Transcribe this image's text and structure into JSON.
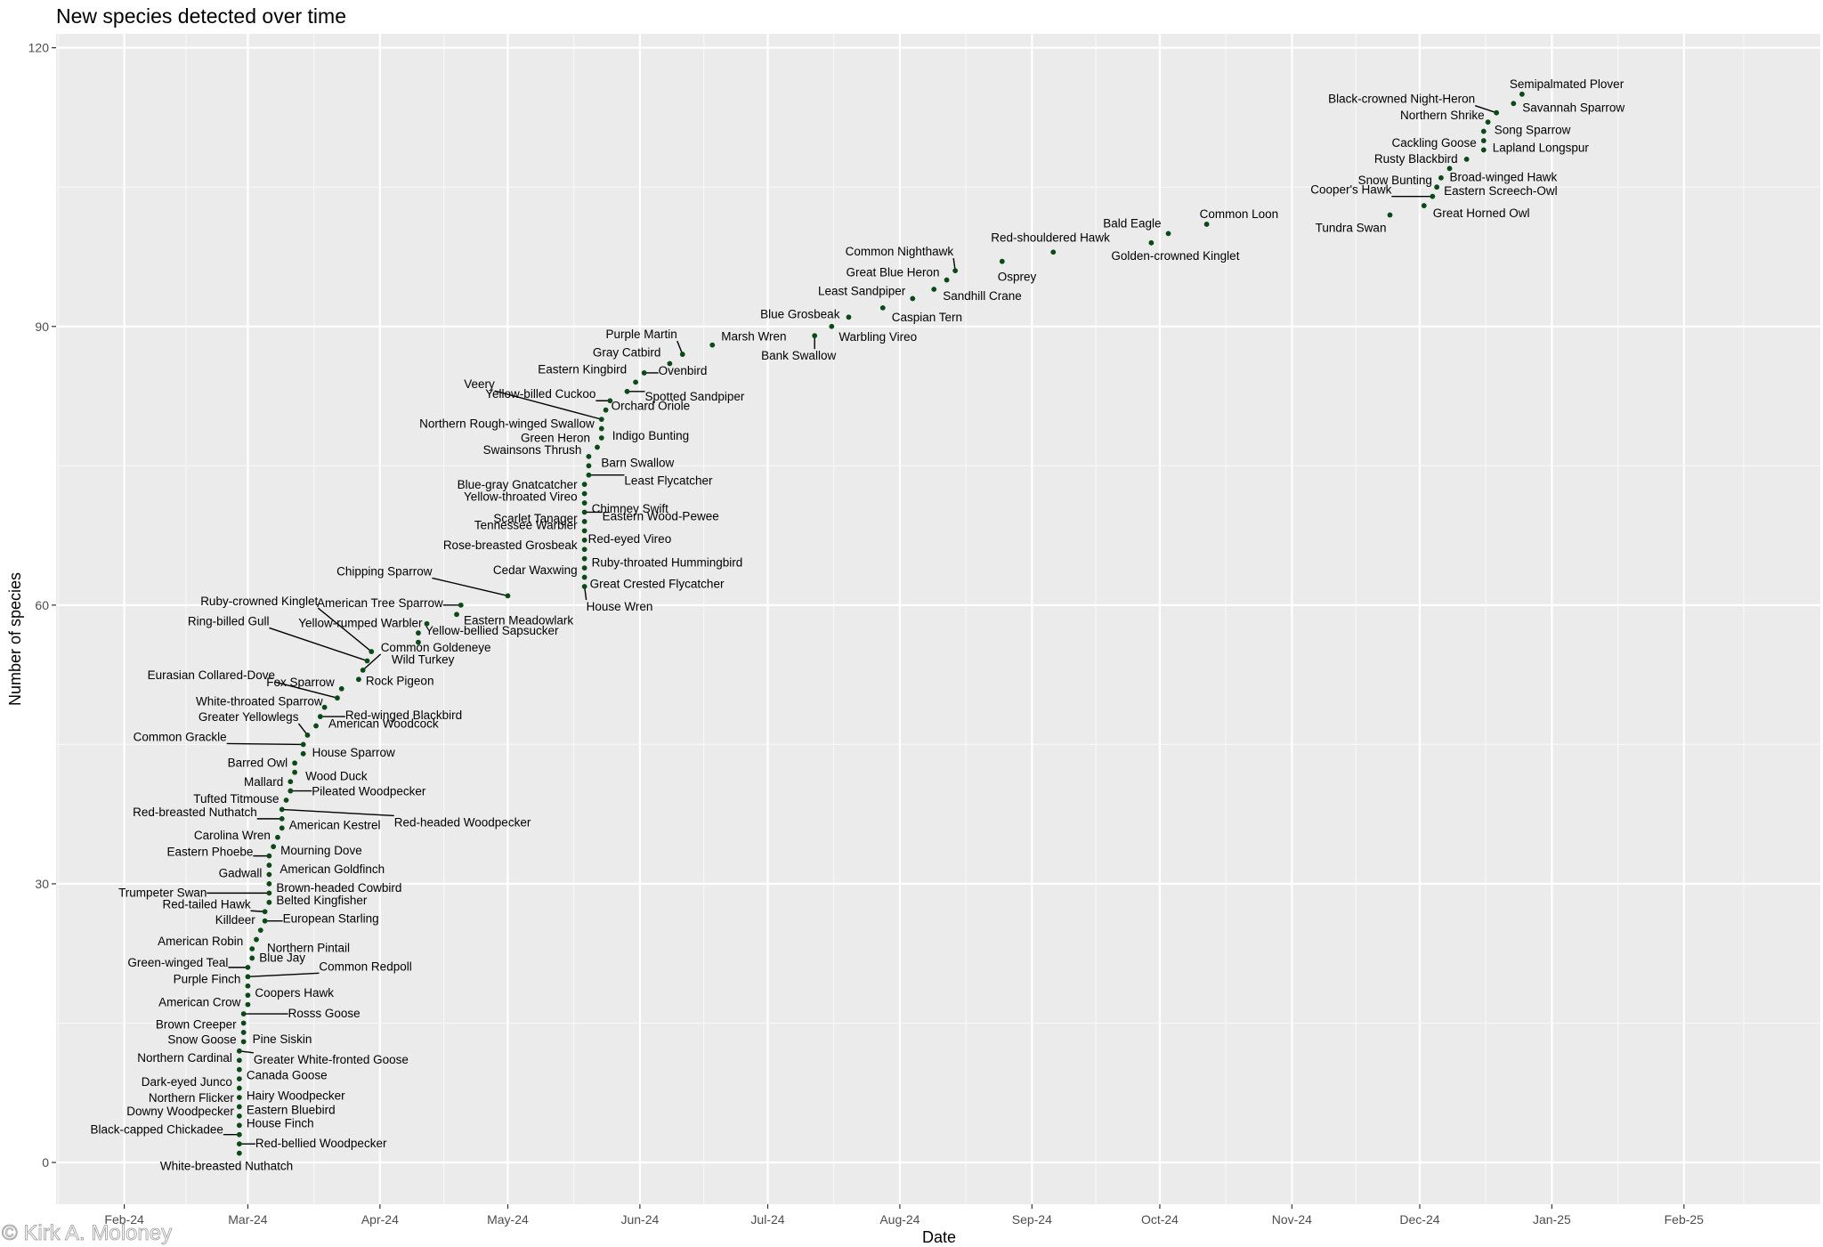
{
  "chart_data": {
    "type": "scatter",
    "title": "New species detected over time",
    "xlabel": "Date",
    "ylabel": "Number of species",
    "xlim": [
      "2024-01-16",
      "2025-03-05"
    ],
    "ylim": [
      -4.5,
      121.5
    ],
    "y_ticks": [
      0,
      30,
      60,
      90,
      120
    ],
    "x_ticks": [
      {
        "date": "2024-02-01",
        "label": "Feb-24"
      },
      {
        "date": "2024-03-01",
        "label": "Mar-24"
      },
      {
        "date": "2024-04-01",
        "label": "Apr-24"
      },
      {
        "date": "2024-05-01",
        "label": "May-24"
      },
      {
        "date": "2024-06-01",
        "label": "Jun-24"
      },
      {
        "date": "2024-07-01",
        "label": "Jul-24"
      },
      {
        "date": "2024-08-01",
        "label": "Aug-24"
      },
      {
        "date": "2024-09-01",
        "label": "Sep-24"
      },
      {
        "date": "2024-10-01",
        "label": "Oct-24"
      },
      {
        "date": "2024-11-01",
        "label": "Nov-24"
      },
      {
        "date": "2024-12-01",
        "label": "Dec-24"
      },
      {
        "date": "2025-01-01",
        "label": "Jan-25"
      },
      {
        "date": "2025-02-01",
        "label": "Feb-25"
      }
    ],
    "grid": true,
    "point_color": "#0b4a16",
    "panel_color": "#ebebeb",
    "points": [
      {
        "species": "White-breasted Nuthatch",
        "date": "2024-02-28",
        "count": 1
      },
      {
        "species": "Red-bellied Woodpecker",
        "date": "2024-02-28",
        "count": 2
      },
      {
        "species": "Black-capped Chickadee",
        "date": "2024-02-28",
        "count": 3
      },
      {
        "species": "House Finch",
        "date": "2024-02-28",
        "count": 4
      },
      {
        "species": "Downy Woodpecker",
        "date": "2024-02-28",
        "count": 5
      },
      {
        "species": "Eastern Bluebird",
        "date": "2024-02-28",
        "count": 6
      },
      {
        "species": "Northern Flicker",
        "date": "2024-02-28",
        "count": 7
      },
      {
        "species": "Hairy Woodpecker",
        "date": "2024-02-28",
        "count": 8
      },
      {
        "species": "Dark-eyed Junco",
        "date": "2024-02-28",
        "count": 9
      },
      {
        "species": "Canada Goose",
        "date": "2024-02-28",
        "count": 10
      },
      {
        "species": "Northern Cardinal",
        "date": "2024-02-28",
        "count": 11
      },
      {
        "species": "Greater White-fronted Goose",
        "date": "2024-02-28",
        "count": 12
      },
      {
        "species": "Snow Goose",
        "date": "2024-02-29",
        "count": 13
      },
      {
        "species": "Pine Siskin",
        "date": "2024-02-29",
        "count": 14
      },
      {
        "species": "Brown Creeper",
        "date": "2024-02-29",
        "count": 15
      },
      {
        "species": "Rosss Goose",
        "date": "2024-02-29",
        "count": 16
      },
      {
        "species": "American Crow",
        "date": "2024-03-01",
        "count": 17
      },
      {
        "species": "Coopers Hawk",
        "date": "2024-03-01",
        "count": 18
      },
      {
        "species": "Purple Finch",
        "date": "2024-03-01",
        "count": 19
      },
      {
        "species": "Common Redpoll",
        "date": "2024-03-01",
        "count": 20
      },
      {
        "species": "Green-winged Teal",
        "date": "2024-03-01",
        "count": 21
      },
      {
        "species": "Blue Jay",
        "date": "2024-03-02",
        "count": 22
      },
      {
        "species": "American Robin",
        "date": "2024-03-02",
        "count": 23
      },
      {
        "species": "Northern Pintail",
        "date": "2024-03-03",
        "count": 24
      },
      {
        "species": "Killdeer",
        "date": "2024-03-04",
        "count": 25
      },
      {
        "species": "European Starling",
        "date": "2024-03-05",
        "count": 26
      },
      {
        "species": "Red-tailed Hawk",
        "date": "2024-03-05",
        "count": 27
      },
      {
        "species": "Belted Kingfisher",
        "date": "2024-03-06",
        "count": 28
      },
      {
        "species": "Trumpeter Swan",
        "date": "2024-03-06",
        "count": 29
      },
      {
        "species": "Brown-headed Cowbird",
        "date": "2024-03-06",
        "count": 30
      },
      {
        "species": "Gadwall",
        "date": "2024-03-06",
        "count": 31
      },
      {
        "species": "American Goldfinch",
        "date": "2024-03-06",
        "count": 32
      },
      {
        "species": "Eastern Phoebe",
        "date": "2024-03-06",
        "count": 33
      },
      {
        "species": "Mourning Dove",
        "date": "2024-03-07",
        "count": 34
      },
      {
        "species": "Carolina Wren",
        "date": "2024-03-08",
        "count": 35
      },
      {
        "species": "American Kestrel",
        "date": "2024-03-09",
        "count": 36
      },
      {
        "species": "Red-breasted Nuthatch",
        "date": "2024-03-09",
        "count": 37
      },
      {
        "species": "Red-headed Woodpecker",
        "date": "2024-03-09",
        "count": 38
      },
      {
        "species": "Tufted Titmouse",
        "date": "2024-03-10",
        "count": 39
      },
      {
        "species": "Pileated Woodpecker",
        "date": "2024-03-11",
        "count": 40
      },
      {
        "species": "Mallard",
        "date": "2024-03-11",
        "count": 41
      },
      {
        "species": "Wood Duck",
        "date": "2024-03-12",
        "count": 42
      },
      {
        "species": "Barred Owl",
        "date": "2024-03-12",
        "count": 43
      },
      {
        "species": "House Sparrow",
        "date": "2024-03-14",
        "count": 44
      },
      {
        "species": "Common Grackle",
        "date": "2024-03-14",
        "count": 45
      },
      {
        "species": "Greater Yellowlegs",
        "date": "2024-03-15",
        "count": 46
      },
      {
        "species": "American Woodcock",
        "date": "2024-03-17",
        "count": 47
      },
      {
        "species": "Red-winged Blackbird",
        "date": "2024-03-18",
        "count": 48
      },
      {
        "species": "White-throated Sparrow",
        "date": "2024-03-19",
        "count": 49
      },
      {
        "species": "Eurasian Collared-Dove",
        "date": "2024-03-22",
        "count": 50
      },
      {
        "species": "Fox Sparrow",
        "date": "2024-03-23",
        "count": 51
      },
      {
        "species": "Rock Pigeon",
        "date": "2024-03-27",
        "count": 52
      },
      {
        "species": "Common Goldeneye",
        "date": "2024-03-28",
        "count": 53
      },
      {
        "species": "Ring-billed Gull",
        "date": "2024-03-29",
        "count": 54
      },
      {
        "species": "Ruby-crowned Kinglet",
        "date": "2024-03-30",
        "count": 55
      },
      {
        "species": "Wild Turkey",
        "date": "2024-04-10",
        "count": 56
      },
      {
        "species": "Yellow-bellied Sapsucker",
        "date": "2024-04-10",
        "count": 57
      },
      {
        "species": "Yellow-rumped Warbler",
        "date": "2024-04-12",
        "count": 58
      },
      {
        "species": "Eastern Meadowlark",
        "date": "2024-04-19",
        "count": 59
      },
      {
        "species": "American Tree Sparrow",
        "date": "2024-04-20",
        "count": 60
      },
      {
        "species": "Chipping Sparrow",
        "date": "2024-05-01",
        "count": 61
      },
      {
        "species": "House Wren",
        "date": "2024-05-19",
        "count": 62
      },
      {
        "species": "Great Crested Flycatcher",
        "date": "2024-05-19",
        "count": 63
      },
      {
        "species": "Cedar Waxwing",
        "date": "2024-05-19",
        "count": 64
      },
      {
        "species": "Ruby-throated Hummingbird",
        "date": "2024-05-19",
        "count": 65
      },
      {
        "species": "Rose-breasted Grosbeak",
        "date": "2024-05-19",
        "count": 66
      },
      {
        "species": "Red-eyed Vireo",
        "date": "2024-05-19",
        "count": 67
      },
      {
        "species": "Tennessee Warbler",
        "date": "2024-05-19",
        "count": 68
      },
      {
        "species": "Scarlet Tanager",
        "date": "2024-05-19",
        "count": 69
      },
      {
        "species": "Eastern Wood-Pewee",
        "date": "2024-05-19",
        "count": 70
      },
      {
        "species": "Chimney Swift",
        "date": "2024-05-19",
        "count": 71
      },
      {
        "species": "Yellow-throated Vireo",
        "date": "2024-05-19",
        "count": 72
      },
      {
        "species": "Blue-gray Gnatcatcher",
        "date": "2024-05-19",
        "count": 73
      },
      {
        "species": "Least Flycatcher",
        "date": "2024-05-20",
        "count": 74
      },
      {
        "species": "Barn Swallow",
        "date": "2024-05-20",
        "count": 75
      },
      {
        "species": "Swainsons Thrush",
        "date": "2024-05-20",
        "count": 76
      },
      {
        "species": "Green Heron",
        "date": "2024-05-22",
        "count": 77
      },
      {
        "species": "Indigo Bunting",
        "date": "2024-05-23",
        "count": 78
      },
      {
        "species": "Northern Rough-winged Swallow",
        "date": "2024-05-23",
        "count": 79
      },
      {
        "species": "Veery",
        "date": "2024-05-23",
        "count": 80
      },
      {
        "species": "Orchard Oriole",
        "date": "2024-05-24",
        "count": 81
      },
      {
        "species": "Yellow-billed Cuckoo",
        "date": "2024-05-25",
        "count": 82
      },
      {
        "species": "Spotted Sandpiper",
        "date": "2024-05-29",
        "count": 83
      },
      {
        "species": "Eastern Kingbird",
        "date": "2024-05-31",
        "count": 84
      },
      {
        "species": "Ovenbird",
        "date": "2024-06-02",
        "count": 85
      },
      {
        "species": "Gray Catbird",
        "date": "2024-06-08",
        "count": 86
      },
      {
        "species": "Purple Martin",
        "date": "2024-06-11",
        "count": 87
      },
      {
        "species": "Marsh Wren",
        "date": "2024-06-18",
        "count": 88
      },
      {
        "species": "Bank Swallow",
        "date": "2024-07-12",
        "count": 89
      },
      {
        "species": "Warbling Vireo",
        "date": "2024-07-16",
        "count": 90
      },
      {
        "species": "Blue Grosbeak",
        "date": "2024-07-20",
        "count": 91
      },
      {
        "species": "Caspian Tern",
        "date": "2024-07-28",
        "count": 92
      },
      {
        "species": "Least Sandpiper",
        "date": "2024-08-04",
        "count": 93
      },
      {
        "species": "Sandhill Crane",
        "date": "2024-08-09",
        "count": 94
      },
      {
        "species": "Great Blue Heron",
        "date": "2024-08-12",
        "count": 95
      },
      {
        "species": "Common Nighthawk",
        "date": "2024-08-14",
        "count": 96
      },
      {
        "species": "Osprey",
        "date": "2024-08-25",
        "count": 97
      },
      {
        "species": "Red-shouldered Hawk",
        "date": "2024-09-06",
        "count": 98
      },
      {
        "species": "Golden-crowned Kinglet",
        "date": "2024-09-29",
        "count": 99
      },
      {
        "species": "Bald Eagle",
        "date": "2024-10-03",
        "count": 100
      },
      {
        "species": "Common Loon",
        "date": "2024-10-12",
        "count": 101
      },
      {
        "species": "Tundra Swan",
        "date": "2024-11-24",
        "count": 102
      },
      {
        "species": "Great Horned Owl",
        "date": "2024-12-02",
        "count": 103
      },
      {
        "species": "Cooper's Hawk",
        "date": "2024-12-04",
        "count": 104
      },
      {
        "species": "Eastern Screech-Owl",
        "date": "2024-12-05",
        "count": 105
      },
      {
        "species": "Snow Bunting",
        "date": "2024-12-06",
        "count": 106
      },
      {
        "species": "Broad-winged Hawk",
        "date": "2024-12-08",
        "count": 107
      },
      {
        "species": "Rusty Blackbird",
        "date": "2024-12-12",
        "count": 108
      },
      {
        "species": "Lapland Longspur",
        "date": "2024-12-16",
        "count": 109
      },
      {
        "species": "Cackling Goose",
        "date": "2024-12-16",
        "count": 110
      },
      {
        "species": "Song Sparrow",
        "date": "2024-12-16",
        "count": 111
      },
      {
        "species": "Northern Shrike",
        "date": "2024-12-17",
        "count": 112
      },
      {
        "species": "Black-crowned Night-Heron",
        "date": "2024-12-19",
        "count": 113
      },
      {
        "species": "Savannah Sparrow",
        "date": "2024-12-23",
        "count": 114
      },
      {
        "species": "Semipalmated Plover",
        "date": "2024-12-25",
        "count": 115
      }
    ]
  },
  "watermark": "© Kirk A. Moloney"
}
